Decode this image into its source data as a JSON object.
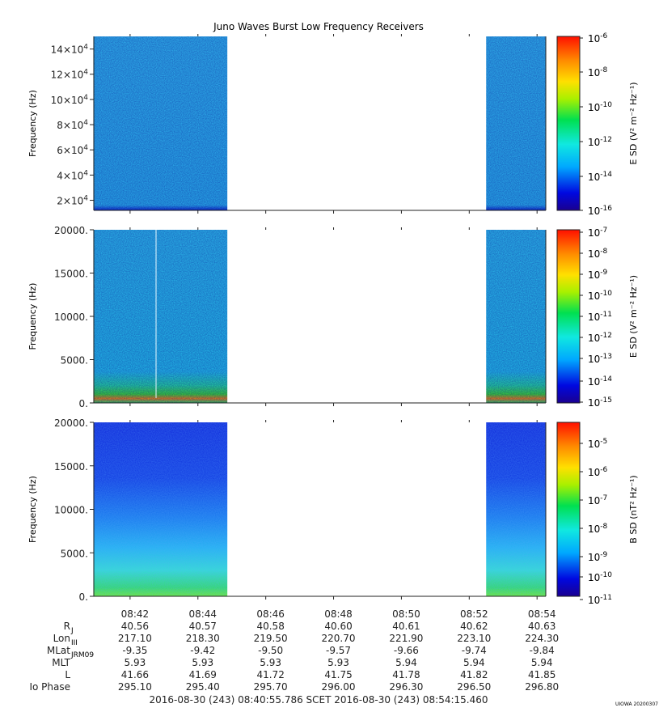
{
  "title": "Juno Waves Burst Low Frequency Receivers",
  "footer": {
    "time_range": "2016-08-30 (243) 08:40:55.786    SCET    2016-08-30 (243) 08:54:15.460",
    "credit": "UIOWA 20200307"
  },
  "colors": {
    "cyan": "#26c6f0",
    "blue": "#0a24d6",
    "green": "#28e030",
    "orange": "#f08c14"
  },
  "chart_data": [
    {
      "type": "heatmap",
      "title": "Juno Waves Burst Low Frequency Receivers",
      "ylabel": "Frequency (Hz)",
      "colorbar_label": "E SD (V² m⁻² Hz⁻¹)",
      "colorbar_ticks": [
        "-6",
        "-8",
        "-10",
        "-12",
        "-14",
        "-16"
      ],
      "ytick_labels": [
        {
          "m": "14",
          "e": "4"
        },
        {
          "m": "12",
          "e": "4"
        },
        {
          "m": "10",
          "e": "4"
        },
        {
          "m": "8",
          "e": "4"
        },
        {
          "m": "6",
          "e": "4"
        },
        {
          "m": "4",
          "e": "4"
        },
        {
          "m": "2",
          "e": "4"
        }
      ],
      "ytick_values": [
        140000,
        120000,
        100000,
        80000,
        60000,
        40000,
        20000
      ],
      "ylim": [
        12000,
        150000
      ],
      "data_segments": [
        [
          "08:40:55",
          "08:44:52"
        ],
        [
          "08:52:30",
          "08:54:15"
        ]
      ]
    },
    {
      "type": "heatmap",
      "ylabel": "Frequency (Hz)",
      "colorbar_label": "E SD (V² m⁻² Hz⁻¹)",
      "colorbar_ticks": [
        "-7",
        "-8",
        "-9",
        "-10",
        "-11",
        "-12",
        "-13",
        "-14",
        "-15"
      ],
      "ytick_labels": [
        "20000.",
        "15000.",
        "10000.",
        "5000.",
        "0."
      ],
      "ytick_values": [
        20000,
        15000,
        10000,
        5000,
        0
      ],
      "ylim": [
        0,
        20000
      ],
      "data_segments": [
        [
          "08:40:55",
          "08:44:52"
        ],
        [
          "08:52:30",
          "08:54:15"
        ]
      ]
    },
    {
      "type": "heatmap",
      "ylabel": "Frequency (Hz)",
      "colorbar_label": "B SD (nT² Hz⁻¹)",
      "colorbar_ticks": [
        "-5",
        "-6",
        "-7",
        "-8",
        "-9",
        "-10",
        "-11"
      ],
      "ytick_labels": [
        "20000.",
        "15000.",
        "10000.",
        "5000.",
        "0."
      ],
      "ytick_values": [
        20000,
        15000,
        10000,
        5000,
        0
      ],
      "ylim": [
        0,
        20000
      ],
      "data_segments": [
        [
          "08:40:55",
          "08:44:52"
        ],
        [
          "08:52:30",
          "08:54:15"
        ]
      ]
    }
  ],
  "x_axis": {
    "ticks": [
      "08:42",
      "08:44",
      "08:46",
      "08:48",
      "08:50",
      "08:52",
      "08:54"
    ],
    "rows": [
      {
        "label": "R",
        "sub": "J",
        "values": [
          "40.56",
          "40.57",
          "40.58",
          "40.60",
          "40.61",
          "40.62",
          "40.63"
        ]
      },
      {
        "label": "Lon",
        "sub": "III",
        "values": [
          "217.10",
          "218.30",
          "219.50",
          "220.70",
          "221.90",
          "223.10",
          "224.30"
        ]
      },
      {
        "label": "MLat",
        "sub": "JRM09",
        "values": [
          "-9.35",
          "-9.42",
          "-9.50",
          "-9.57",
          "-9.66",
          "-9.74",
          "-9.84"
        ]
      },
      {
        "label": "MLT",
        "sub": "",
        "values": [
          "5.93",
          "5.93",
          "5.93",
          "5.93",
          "5.94",
          "5.94",
          "5.94"
        ]
      },
      {
        "label": "L",
        "sub": "",
        "values": [
          "41.66",
          "41.69",
          "41.72",
          "41.75",
          "41.78",
          "41.82",
          "41.85"
        ]
      },
      {
        "label": "Io Phase",
        "sub": "",
        "values": [
          "295.10",
          "295.40",
          "295.70",
          "296.00",
          "296.30",
          "296.50",
          "296.80"
        ]
      }
    ]
  }
}
